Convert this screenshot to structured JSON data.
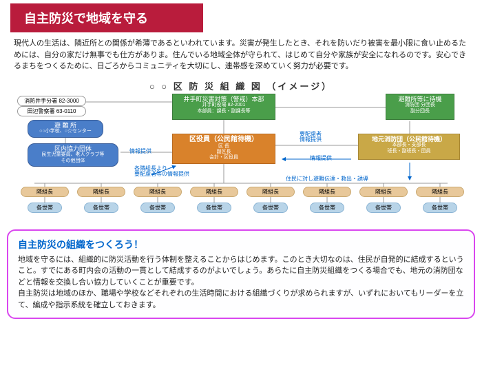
{
  "header": "自主防災で地域を守る",
  "intro": "現代人の生活は、隣近所との関係が希薄であるといわれています。災害が発生したとき、それを防いだり被害を最小限に食い止めるためには、自分の家だけ無事でも仕方がありま。住んでいる地域全体が守られて、はじめて自分や家族が安全になれるのです。安心できるまちをつくるために、日ごろからコミュニティを大切にし、連帯感を深めていく努力が必要です。",
  "chart": {
    "title": "○ ○ 区 防 災 組 織 図 （イメージ）",
    "fire_dept": {
      "label": "消防井手分署",
      "tel": "82-3000"
    },
    "police": {
      "label": "田辺警察署",
      "tel": "63-0110"
    },
    "hq": {
      "title": "井手町災害対策（警戒）本部",
      "sub": "井手町役場 82-2001",
      "sub2": "本部員：課長・副課長等"
    },
    "shelter_wait": {
      "title": "避難所等に待機",
      "sub": "消防団 分団長\n副分団長"
    },
    "shelter": {
      "title": "避 難 所",
      "sub": "○○小学校、○☆センター"
    },
    "coop": {
      "title": "区内協力団体",
      "sub": "民生児童委員、老人クラブ等\nその他団体"
    },
    "officers": {
      "title": "区役員（公民館待機）",
      "sub": "区 長\n副区長\n会計・区役員"
    },
    "fire_local": {
      "title": "地元消防団（公民館待機）",
      "sub": "本部長・支部長\n班長・副班長・団員"
    },
    "blue_label1": "要配慮者\n情報提供",
    "blue_label2": "情報提供",
    "blue_label3": "情報提供",
    "blue_label4": "各隣組長より\n要配慮者等の情報提供",
    "blue_label5": "住民に対し避難伝達・救出・誘導",
    "adj_leader": "隣組長",
    "household": "各世帯"
  },
  "bottom": {
    "title": "自主防災の組織をつくろう！",
    "text": "地域を守るには、組織的に防災活動を行う体制を整えることからはじめます。このとき大切なのは、住民が自発的に結成するということ。すでにある町内会の活動の一貫として結成するのがよいでしょう。あらたに自主防災組織をつくる場合でも、地元の消防団などと情報を交換し合い協力していくことが重要です。\n自主防災は地域のほか、職場や学校などそれぞれの生活時間における組織づくりが求められますが、いずれにおいてもリーダーを立て、編成や指示系統を確立しておきます。"
  }
}
